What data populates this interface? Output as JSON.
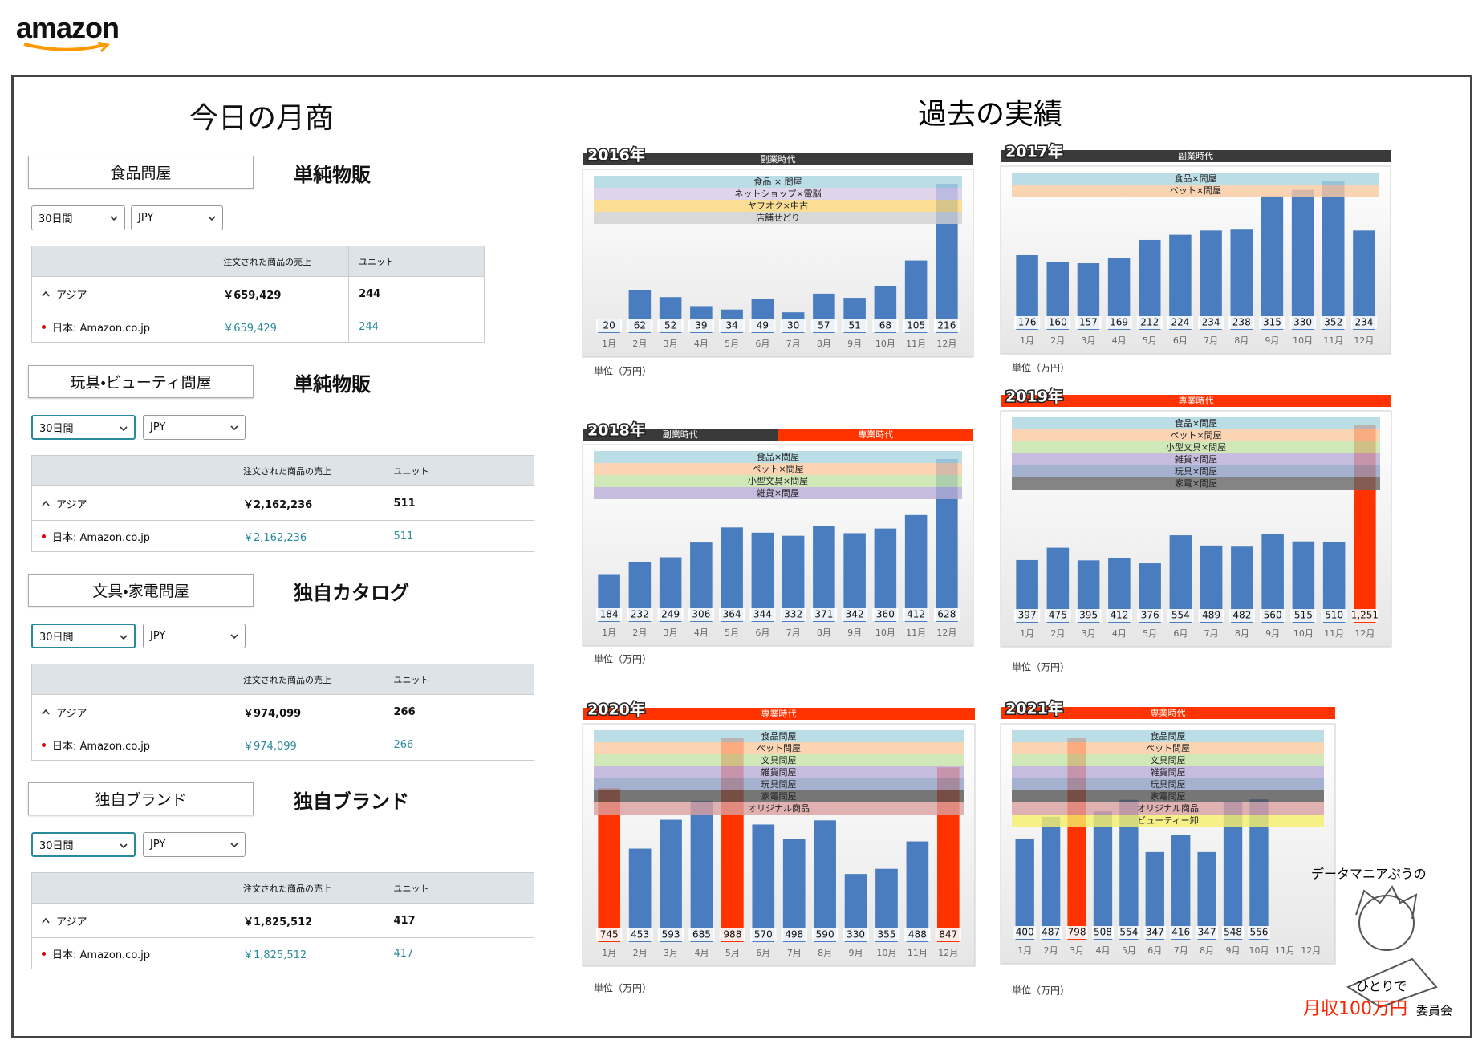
{
  "header": {
    "logo": "amazon"
  },
  "left": {
    "title": "今日の月商",
    "panels": [
      {
        "name": "食品問屋",
        "kind": "単純物販",
        "period": "30日間",
        "currency": "JPY",
        "columns": [
          "注文された商品の売上",
          "ユニット"
        ],
        "rows": [
          [
            "アジア",
            "￥659,429",
            "244"
          ],
          [
            "日本: Amazon.co.jp",
            "￥659,429",
            "244"
          ]
        ]
      },
      {
        "name": "玩具・ビューティ問屋",
        "kind": "単純物販",
        "period": "30日間",
        "currency": "JPY",
        "columns": [
          "注文された商品の売上",
          "ユニット"
        ],
        "rows": [
          [
            "アジア",
            "￥2,162,236",
            "511"
          ],
          [
            "日本: Amazon.co.jp",
            "￥2,162,236",
            "511"
          ]
        ]
      },
      {
        "name": "文具・家電問屋",
        "kind": "独自カタログ",
        "period": "30日間",
        "currency": "JPY",
        "columns": [
          "注文された商品の売上",
          "ユニット"
        ],
        "rows": [
          [
            "アジア",
            "￥974,099",
            "266"
          ],
          [
            "日本: Amazon.co.jp",
            "￥974,099",
            "266"
          ]
        ]
      },
      {
        "name": "独自ブランド",
        "kind": "独自ブランド",
        "period": "30日間",
        "currency": "JPY",
        "columns": [
          "注文された商品の売上",
          "ユニット"
        ],
        "rows": [
          [
            "アジア",
            "￥1,825,512",
            "417"
          ],
          [
            "日本: Amazon.co.jp",
            "￥1,825,512",
            "417"
          ]
        ]
      }
    ]
  },
  "history_title": "過去の実績",
  "chart_data": [
    {
      "type": "bar",
      "title": "2016年",
      "unit": "単位（万円）",
      "eras": [
        {
          "label": "副業時代",
          "color": "#3a3a3a"
        }
      ],
      "bands": [
        {
          "label": "食品 × 問屋",
          "color": "#a9d4e0"
        },
        {
          "label": "ネットショップ×電脳",
          "color": "#d9cbe6"
        },
        {
          "label": "ヤフオク×中古",
          "color": "#fbd77a"
        },
        {
          "label": "店舗せどり",
          "color": "#d0d0d0"
        }
      ],
      "categories": [
        "1月",
        "2月",
        "3月",
        "4月",
        "5月",
        "6月",
        "7月",
        "8月",
        "9月",
        "10月",
        "11月",
        "12月"
      ],
      "values": [
        20,
        62,
        52,
        39,
        34,
        49,
        30,
        57,
        51,
        68,
        105,
        216
      ],
      "colors": [
        "#4a7cc0",
        "#4a7cc0",
        "#4a7cc0",
        "#4a7cc0",
        "#4a7cc0",
        "#4a7cc0",
        "#4a7cc0",
        "#4a7cc0",
        "#4a7cc0",
        "#4a7cc0",
        "#4a7cc0",
        "#4a7cc0"
      ]
    },
    {
      "type": "bar",
      "title": "2017年",
      "unit": "単位（万円）",
      "eras": [
        {
          "label": "副業時代",
          "color": "#3a3a3a"
        }
      ],
      "bands": [
        {
          "label": "食品×問屋",
          "color": "#a9d4e0"
        },
        {
          "label": "ペット×問屋",
          "color": "#f9c9a0"
        }
      ],
      "categories": [
        "1月",
        "2月",
        "3月",
        "4月",
        "5月",
        "6月",
        "7月",
        "8月",
        "9月",
        "10月",
        "11月",
        "12月"
      ],
      "values": [
        176,
        160,
        157,
        169,
        212,
        224,
        234,
        238,
        315,
        330,
        352,
        234
      ],
      "colors": [
        "#4a7cc0",
        "#4a7cc0",
        "#4a7cc0",
        "#4a7cc0",
        "#4a7cc0",
        "#4a7cc0",
        "#4a7cc0",
        "#4a7cc0",
        "#4a7cc0",
        "#4a7cc0",
        "#4a7cc0",
        "#4a7cc0"
      ]
    },
    {
      "type": "bar",
      "title": "2018年",
      "unit": "単位（万円）",
      "eras": [
        {
          "label": "副業時代",
          "color": "#3a3a3a"
        },
        {
          "label": "専業時代",
          "color": "#ff3300"
        }
      ],
      "bands": [
        {
          "label": "食品×問屋",
          "color": "#a9d4e0"
        },
        {
          "label": "ペット×問屋",
          "color": "#f9c9a0"
        },
        {
          "label": "小型文具×問屋",
          "color": "#c6e3a8"
        },
        {
          "label": "雑貨×問屋",
          "color": "#b9acd6"
        }
      ],
      "categories": [
        "1月",
        "2月",
        "3月",
        "4月",
        "5月",
        "6月",
        "7月",
        "8月",
        "9月",
        "10月",
        "11月",
        "12月"
      ],
      "values": [
        184,
        232,
        249,
        306,
        364,
        344,
        332,
        371,
        342,
        360,
        412,
        628
      ],
      "colors": [
        "#4a7cc0",
        "#4a7cc0",
        "#4a7cc0",
        "#4a7cc0",
        "#4a7cc0",
        "#4a7cc0",
        "#4a7cc0",
        "#4a7cc0",
        "#4a7cc0",
        "#4a7cc0",
        "#4a7cc0",
        "#4a7cc0"
      ]
    },
    {
      "type": "bar",
      "title": "2019年",
      "unit": "単位（万円）",
      "eras": [
        {
          "label": "専業時代",
          "color": "#ff3300"
        }
      ],
      "bands": [
        {
          "label": "食品×問屋",
          "color": "#a9d4e0"
        },
        {
          "label": "ペット×問屋",
          "color": "#f9c9a0"
        },
        {
          "label": "小型文具×問屋",
          "color": "#c6e3a8"
        },
        {
          "label": "雑貨×問屋",
          "color": "#b9acd6"
        },
        {
          "label": "玩具×問屋",
          "color": "#8f9fc4"
        },
        {
          "label": "家電×問屋",
          "color": "#666666"
        }
      ],
      "categories": [
        "1月",
        "2月",
        "3月",
        "4月",
        "5月",
        "6月",
        "7月",
        "8月",
        "9月",
        "10月",
        "11月",
        "12月"
      ],
      "values": [
        397,
        475,
        395,
        412,
        376,
        554,
        489,
        482,
        560,
        515,
        510,
        1251
      ],
      "value_labels": [
        "397",
        "475",
        "395",
        "412",
        "376",
        "554",
        "489",
        "482",
        "560",
        "515",
        "510",
        "1,251"
      ],
      "colors": [
        "#4a7cc0",
        "#4a7cc0",
        "#4a7cc0",
        "#4a7cc0",
        "#4a7cc0",
        "#4a7cc0",
        "#4a7cc0",
        "#4a7cc0",
        "#4a7cc0",
        "#4a7cc0",
        "#4a7cc0",
        "#ff3300"
      ]
    },
    {
      "type": "bar",
      "title": "2020年",
      "unit": "単位（万円）",
      "eras": [
        {
          "label": "専業時代",
          "color": "#ff3300"
        }
      ],
      "bands": [
        {
          "label": "食品問屋",
          "color": "#a9d4e0"
        },
        {
          "label": "ペット問屋",
          "color": "#f9c9a0"
        },
        {
          "label": "文具問屋",
          "color": "#c6e3a8"
        },
        {
          "label": "雑貨問屋",
          "color": "#b9acd6"
        },
        {
          "label": "玩具問屋",
          "color": "#8f9fc4"
        },
        {
          "label": "家電問屋",
          "color": "#555555"
        },
        {
          "label": "オリジナル商品",
          "color": "#d9a0a0"
        }
      ],
      "categories": [
        "1月",
        "2月",
        "3月",
        "4月",
        "5月",
        "6月",
        "7月",
        "8月",
        "9月",
        "10月",
        "11月",
        "12月"
      ],
      "values": [
        745,
        453,
        593,
        685,
        988,
        570,
        498,
        590,
        330,
        355,
        488,
        847
      ],
      "colors": [
        "#ff3300",
        "#4a7cc0",
        "#4a7cc0",
        "#4a7cc0",
        "#ff3300",
        "#4a7cc0",
        "#4a7cc0",
        "#4a7cc0",
        "#4a7cc0",
        "#4a7cc0",
        "#4a7cc0",
        "#ff3300"
      ]
    },
    {
      "type": "bar",
      "title": "2021年",
      "unit": "単位（万円）",
      "eras": [
        {
          "label": "専業時代",
          "color": "#ff3300"
        }
      ],
      "bands": [
        {
          "label": "食品問屋",
          "color": "#a9d4e0"
        },
        {
          "label": "ペット問屋",
          "color": "#f9c9a0"
        },
        {
          "label": "文具問屋",
          "color": "#c6e3a8"
        },
        {
          "label": "雑貨問屋",
          "color": "#b9acd6"
        },
        {
          "label": "玩具問屋",
          "color": "#8f9fc4"
        },
        {
          "label": "家電問屋",
          "color": "#555555"
        },
        {
          "label": "オリジナル商品",
          "color": "#d9a0a0"
        },
        {
          "label": "ビューティー卸",
          "color": "#f5f06a"
        }
      ],
      "categories": [
        "1月",
        "2月",
        "3月",
        "4月",
        "5月",
        "6月",
        "7月",
        "8月",
        "9月",
        "10月",
        "11月",
        "12月"
      ],
      "values": [
        400,
        487,
        798,
        508,
        554,
        347,
        416,
        347,
        548,
        556,
        null,
        null
      ],
      "colors": [
        "#4a7cc0",
        "#4a7cc0",
        "#ff3300",
        "#4a7cc0",
        "#4a7cc0",
        "#4a7cc0",
        "#4a7cc0",
        "#4a7cc0",
        "#4a7cc0",
        "#4a7cc0",
        "#4a7cc0",
        "#4a7cc0"
      ]
    }
  ],
  "footer": {
    "line1": "データマニアぷうの",
    "line2": "ひとりで",
    "highlight": "月収100万円",
    "suffix": "委員会"
  }
}
